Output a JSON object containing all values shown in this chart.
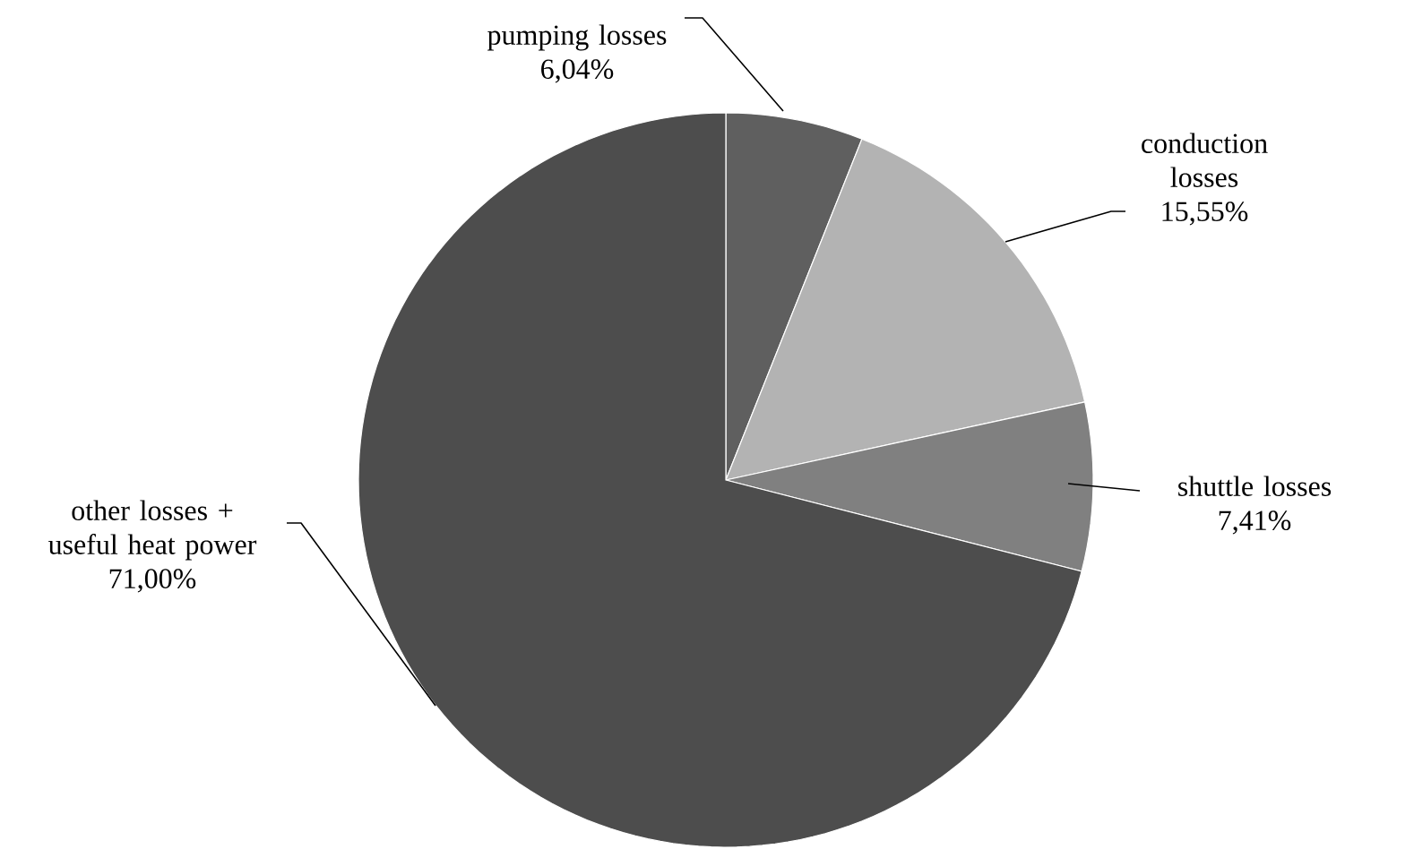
{
  "chart_data": {
    "type": "pie",
    "categories": [
      "pumping losses",
      "conduction losses",
      "shuttle losses",
      "other losses + useful heat power"
    ],
    "values": [
      6.04,
      15.55,
      7.41,
      71.0
    ],
    "value_labels": [
      "6,04%",
      "15,55%",
      "7,41%",
      "71,00%"
    ],
    "colors": [
      "#5f5f5f",
      "#b3b3b3",
      "#808080",
      "#4d4d4d"
    ]
  }
}
